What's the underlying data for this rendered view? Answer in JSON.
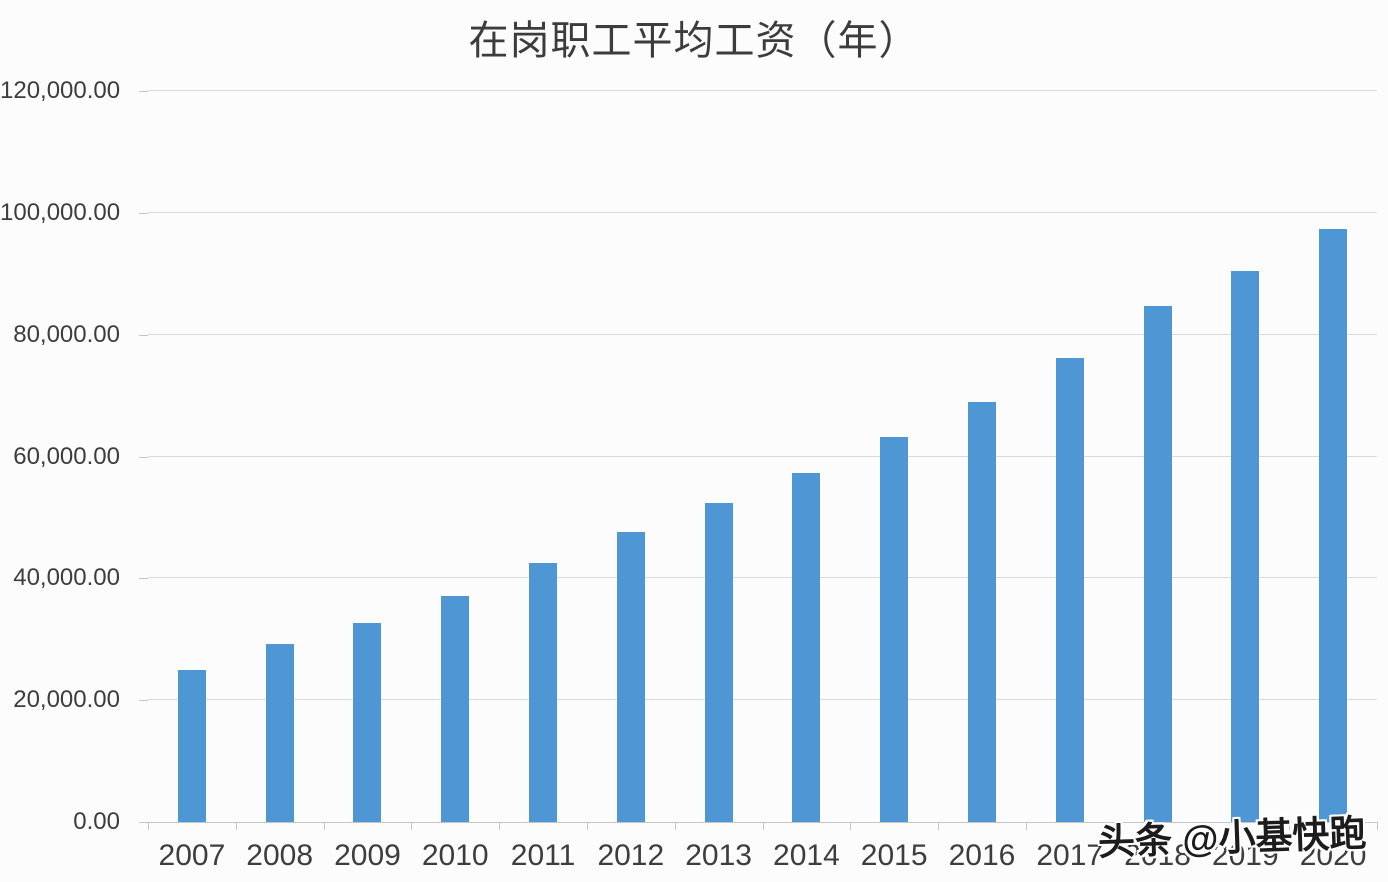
{
  "watermark": "头条 @小基快跑",
  "colors": {
    "bar": "#4f96d4",
    "gridline": "#dadada",
    "axis": "#c5c5c5",
    "text": "#3d3d3d",
    "title_text": "#3c3c3c",
    "watermark_text": "#1c1c1c",
    "background": "#fcfcfc"
  },
  "chart_data": {
    "type": "bar",
    "title": "在岗职工平均工资（年）",
    "categories": [
      "2007",
      "2008",
      "2009",
      "2010",
      "2011",
      "2012",
      "2013",
      "2014",
      "2015",
      "2016",
      "2017",
      "2018",
      "2019",
      "2020"
    ],
    "values": [
      24932,
      29229,
      32736,
      37147,
      42452,
      47593,
      52388,
      57361,
      63241,
      68993,
      76121,
      84744,
      90501,
      97379
    ],
    "series_name": "在岗职工平均工资",
    "xlabel": "",
    "ylabel": "",
    "ylim": [
      0,
      120000
    ],
    "y_tick_interval": 20000,
    "y_tick_labels": [
      "0.00",
      "20,000.00",
      "40,000.00",
      "60,000.00",
      "80,000.00",
      "100,000.00",
      "120,000.00"
    ],
    "grid": true,
    "legend": false
  }
}
